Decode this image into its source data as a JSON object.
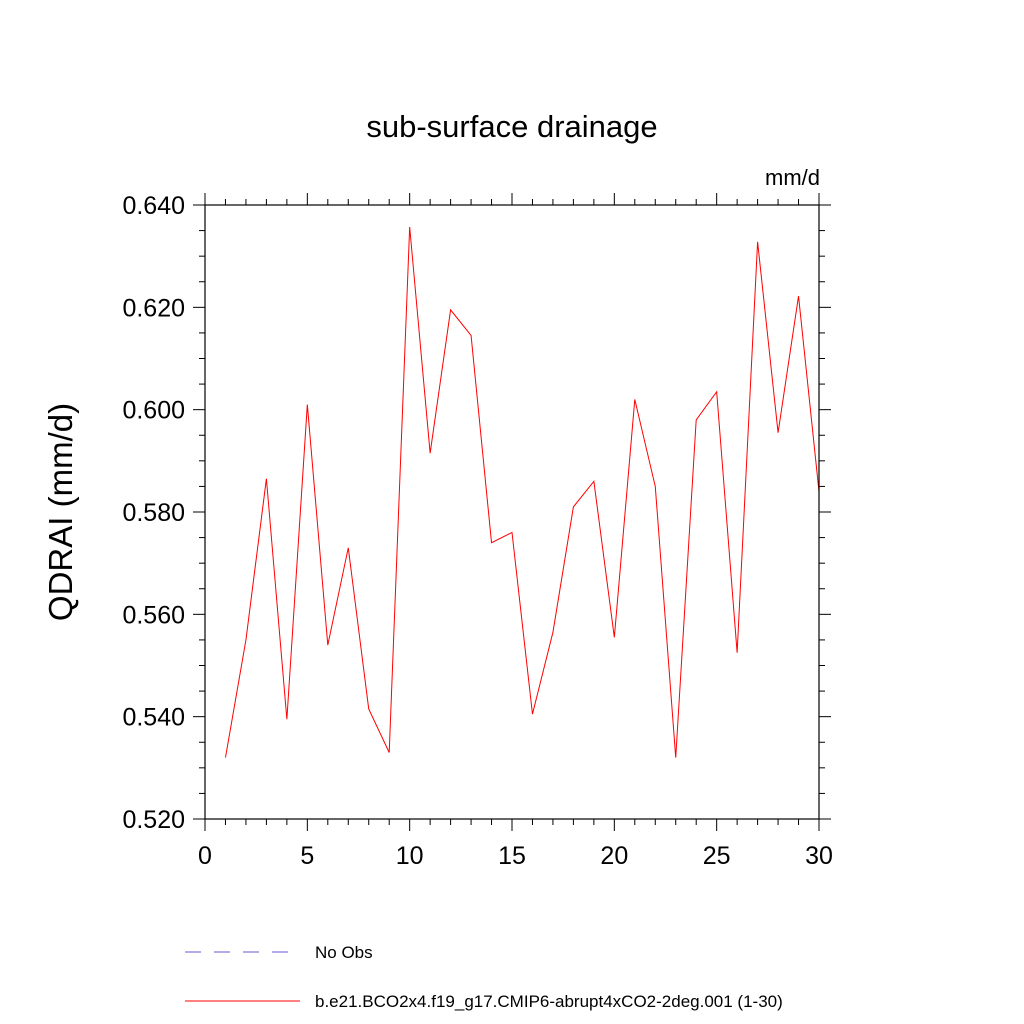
{
  "chart_data": {
    "type": "line",
    "title": "sub-surface drainage",
    "units_label": "mm/d",
    "xlabel": "",
    "ylabel": "QDRAI  (mm/d)",
    "xlim": [
      0,
      30
    ],
    "ylim": [
      0.52,
      0.64
    ],
    "x_ticks": [
      0,
      5,
      10,
      15,
      20,
      25,
      30
    ],
    "x_tick_labels": [
      "0",
      "5",
      "10",
      "15",
      "20",
      "25",
      "30"
    ],
    "y_ticks": [
      0.52,
      0.54,
      0.56,
      0.58,
      0.6,
      0.62,
      0.64
    ],
    "y_tick_labels": [
      "0.520",
      "0.540",
      "0.560",
      "0.580",
      "0.600",
      "0.620",
      "0.640"
    ],
    "grid": false,
    "legend_position": "bottom",
    "series": [
      {
        "name": "b.e21.BCO2x4.f19_g17.CMIP6-abrupt4xCO2-2deg.001 (1-30)",
        "color": "#ff0000",
        "dash": "solid",
        "x": [
          1,
          2,
          3,
          4,
          5,
          6,
          7,
          8,
          9,
          10,
          11,
          12,
          13,
          14,
          15,
          16,
          17,
          18,
          19,
          20,
          21,
          22,
          23,
          24,
          25,
          26,
          27,
          28,
          29,
          30
        ],
        "y": [
          0.532,
          0.555,
          0.5865,
          0.5395,
          0.601,
          0.554,
          0.573,
          0.5415,
          0.533,
          0.6357,
          0.5915,
          0.6195,
          0.6145,
          0.574,
          0.576,
          0.5405,
          0.5565,
          0.581,
          0.586,
          0.5555,
          0.602,
          0.585,
          0.532,
          0.598,
          0.6035,
          0.5525,
          0.6328,
          0.5955,
          0.6222,
          0.584
        ]
      }
    ],
    "legend": [
      {
        "label": "No Obs",
        "color": "#6a5acd",
        "dash": "dashed"
      },
      {
        "label": "b.e21.BCO2x4.f19_g17.CMIP6-abrupt4xCO2-2deg.001 (1-30)",
        "color": "#ff0000",
        "dash": "solid"
      }
    ]
  }
}
